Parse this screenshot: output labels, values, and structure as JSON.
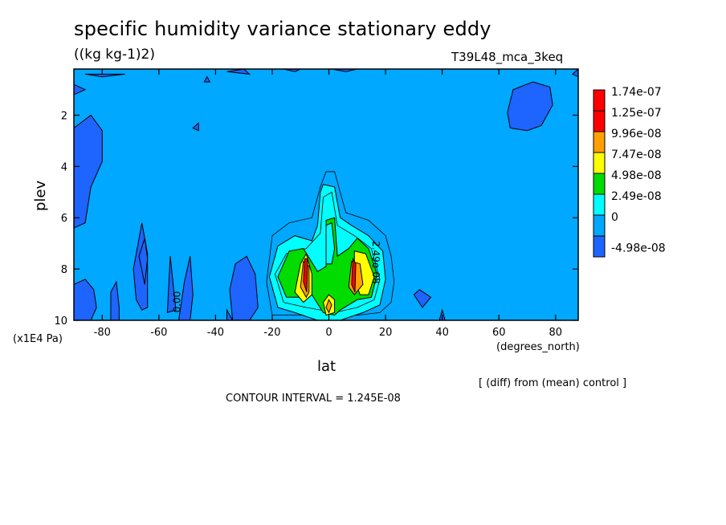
{
  "header": {
    "title": "specific humidity variance stationary eddy",
    "units": "((kg kg-1)2)",
    "run": "T39L48_mca_3keq"
  },
  "axes": {
    "x_label": "lat",
    "x_units": "(degrees_north)",
    "y_label": "plev",
    "y_units": "(x1E4 Pa)"
  },
  "footer": {
    "note": "[ (diff) from (mean) control ]",
    "interval": "CONTOUR INTERVAL = 1.245E-08"
  },
  "chart_data": {
    "type": "heatmap",
    "title": "specific humidity variance stationary eddy",
    "xlabel": "lat",
    "ylabel": "plev",
    "xlim": [
      -90,
      88
    ],
    "ylim": [
      0.2,
      10
    ],
    "y_inverted": true,
    "x_ticks": [
      -80,
      -60,
      -40,
      -20,
      0,
      20,
      40,
      60,
      80
    ],
    "y_ticks": [
      2,
      4,
      6,
      8,
      10
    ],
    "x_tick_labels": [
      "-80",
      "-60",
      "-40",
      "-20",
      "0",
      "20",
      "40",
      "60",
      "80"
    ],
    "y_tick_labels": [
      "2",
      "4",
      "6",
      "8",
      "10"
    ],
    "contour_labels": [
      "0.00",
      "2.49e-08"
    ],
    "legend": {
      "placement": "right",
      "labels": [
        "1.74e-07",
        "1.25e-07",
        "9.96e-08",
        "7.47e-08",
        "4.98e-08",
        "2.49e-08",
        "0",
        "-4.98e-08"
      ],
      "colors": [
        "#ff0000",
        "#ff0000",
        "#ffa000",
        "#ffff00",
        "#00dc00",
        "#00ffff",
        "#00a8ff",
        "#1e64ff"
      ]
    },
    "colors": {
      "background": "#00a8ff",
      "negative": "#1e64ff",
      "level1": "#00ffff",
      "level2": "#00dc00",
      "level3": "#ffff00",
      "level4": "#ffa000",
      "level5": "#ff0000"
    }
  }
}
